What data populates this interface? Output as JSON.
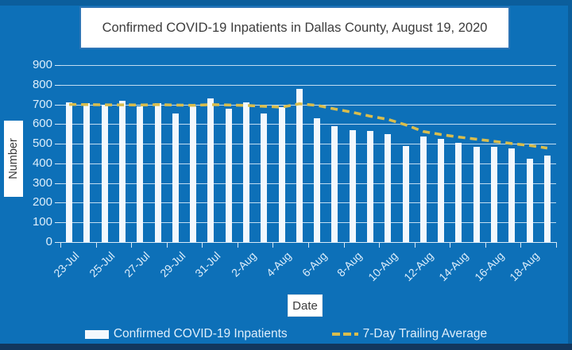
{
  "title": "Confirmed COVID-19 Inpatients in Dallas County, August 19, 2020",
  "colors": {
    "background": "#0d70b8",
    "bar": "#f3f8fd",
    "trailing_line": "#d9bd4d",
    "axis_text": "#ddeefb",
    "title_text": "#3c3c3c",
    "title_border": "#2e75b6",
    "gridline": "#e0effa"
  },
  "chart_data": {
    "type": "bar",
    "title": "Confirmed COVID-19 Inpatients in Dallas County, August 19, 2020",
    "xlabel": "Date",
    "ylabel": "Number",
    "ylim": [
      0,
      900
    ],
    "ytick_interval": 100,
    "grid": true,
    "legend_position": "bottom",
    "categories": [
      "23-Jul",
      "24-Jul",
      "25-Jul",
      "26-Jul",
      "27-Jul",
      "28-Jul",
      "29-Jul",
      "30-Jul",
      "31-Jul",
      "1-Aug",
      "2-Aug",
      "3-Aug",
      "4-Aug",
      "5-Aug",
      "6-Aug",
      "7-Aug",
      "8-Aug",
      "9-Aug",
      "10-Aug",
      "11-Aug",
      "12-Aug",
      "13-Aug",
      "14-Aug",
      "15-Aug",
      "16-Aug",
      "17-Aug",
      "18-Aug",
      "19-Aug"
    ],
    "visible_x_tick_labels": [
      "23-Jul",
      "25-Jul",
      "27-Jul",
      "29-Jul",
      "31-Jul",
      "2-Aug",
      "4-Aug",
      "6-Aug",
      "8-Aug",
      "10-Aug",
      "12-Aug",
      "14-Aug",
      "16-Aug",
      "18-Aug"
    ],
    "series": [
      {
        "name": "Confirmed COVID-19 Inpatients",
        "style": "bar",
        "values": [
          710,
          705,
          700,
          720,
          690,
          705,
          655,
          690,
          730,
          680,
          710,
          655,
          685,
          780,
          630,
          590,
          570,
          565,
          550,
          490,
          535,
          525,
          505,
          485,
          485,
          475,
          425,
          440
        ]
      },
      {
        "name": "7-Day Trailing Average",
        "style": "dashed-line",
        "values": [
          700,
          699,
          698,
          698,
          697,
          699,
          697,
          695,
          699,
          697,
          695,
          690,
          686,
          703,
          695,
          677,
          660,
          640,
          624,
          596,
          562,
          547,
          534,
          523,
          512,
          501,
          491,
          478
        ]
      }
    ]
  },
  "axis_labels": {
    "y": "Number",
    "x": "Date"
  },
  "legend": {
    "bar_label": "Confirmed COVID-19 Inpatients",
    "line_label": "7-Day Trailing Average"
  }
}
